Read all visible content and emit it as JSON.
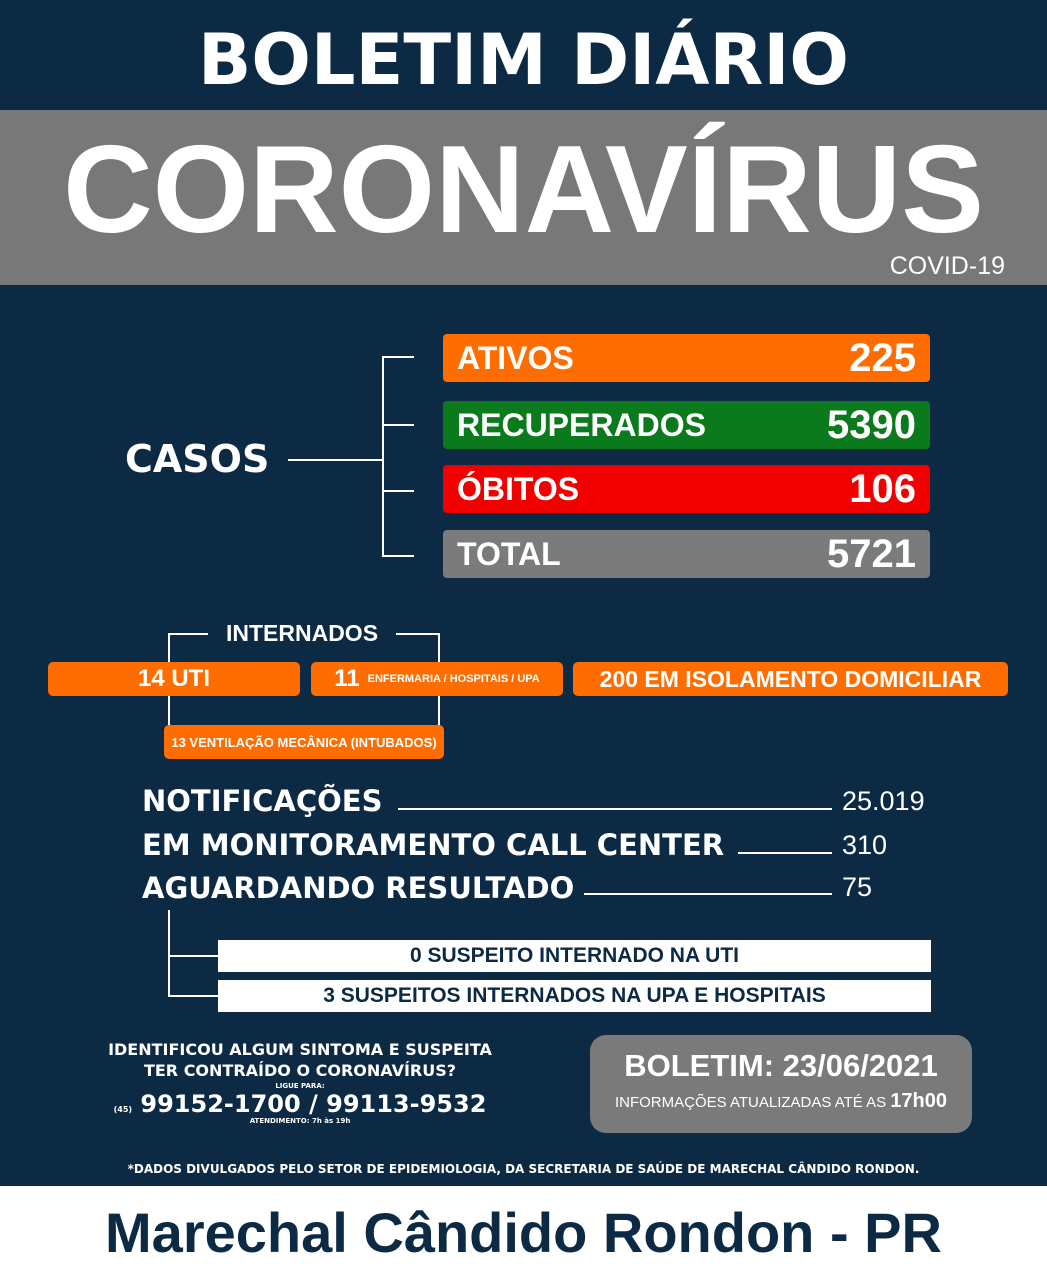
{
  "header": {
    "title": "BOLETIM DIÁRIO",
    "main": "CORONAVÍRUS",
    "sub": "COVID-19"
  },
  "casos": {
    "label": "CASOS",
    "items": [
      {
        "label": "ATIVOS",
        "value": "225",
        "color": "#ff6d00"
      },
      {
        "label": "RECUPERADOS",
        "value": "5390",
        "color": "#0a7a1c"
      },
      {
        "label": "ÓBITOS",
        "value": "106",
        "color": "#f20000"
      },
      {
        "label": "TOTAL",
        "value": "5721",
        "color": "#7b7b7b"
      }
    ]
  },
  "internados": {
    "label": "INTERNADOS",
    "uti": "14 UTI",
    "enf_num": "11",
    "enf_label": "ENFERMARIA / HOSPITAIS / UPA",
    "isolamento": "200 EM ISOLAMENTO DOMICILIAR",
    "ventilacao": "13 VENTILAÇÃO MECÂNICA (INTUBADOS)"
  },
  "stats": [
    {
      "label": "NOTIFICAÇÕES",
      "value": "25.019"
    },
    {
      "label": "EM MONITORAMENTO CALL CENTER",
      "value": "310"
    },
    {
      "label": "AGUARDANDO RESULTADO",
      "value": "75"
    }
  ],
  "suspeitos": [
    "0 SUSPEITO INTERNADO NA UTI",
    "3 SUSPEITOS INTERNADOS NA UPA E HOSPITAIS"
  ],
  "contato": {
    "line1": "IDENTIFICOU ALGUM SINTOMA E SUSPEITA",
    "line2": "TER CONTRAÍDO O CORONAVÍRUS?",
    "ligue": "LIGUE PARA:",
    "ddd": "(45)",
    "phones": "99152-1700 / 99113-9532",
    "atendimento": "ATENDIMENTO: 7h às 19h"
  },
  "boletim": {
    "date": "BOLETIM: 23/06/2021",
    "info": "INFORMAÇÕES ATUALIZADAS ATÉ AS",
    "time": "17h00"
  },
  "source": "*DADOS DIVULGADOS PELO SETOR DE EPIDEMIOLOGIA, DA SECRETARIA DE SAÚDE DE MARECHAL CÂNDIDO RONDON.",
  "footer": "Marechal Cândido Rondon - PR"
}
